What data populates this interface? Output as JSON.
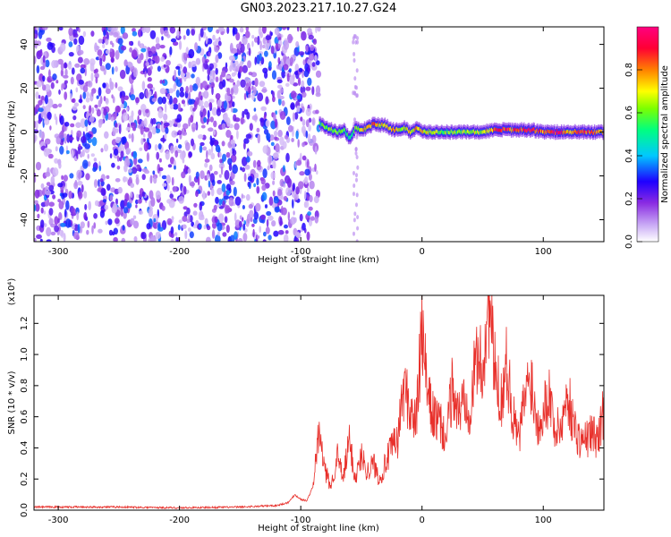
{
  "title": "GN03.2023.217.10.27.G24",
  "chart_data": [
    {
      "type": "heatmap",
      "xlabel": "Height of straight line (km)",
      "ylabel": "Frequency (Hz)",
      "xlim": [
        -320,
        150
      ],
      "ylim": [
        -50,
        48
      ],
      "x_ticks": [
        -300,
        -200,
        -100,
        0,
        100
      ],
      "y_ticks": [
        -40,
        -20,
        0,
        20,
        40
      ],
      "colorbar": {
        "label": "Normalized spectral amplitude",
        "range": [
          0,
          1
        ],
        "ticks": [
          0.0,
          0.2,
          0.4,
          0.6,
          0.8
        ],
        "colors": [
          "#ffffff",
          "#c8a8f5",
          "#8a2be2",
          "#1e00ff",
          "#00c8ff",
          "#00ff80",
          "#7cff00",
          "#ffff00",
          "#ff8000",
          "#ff0033",
          "#ff0080"
        ]
      },
      "noise_region_x": [
        -320,
        -85
      ],
      "signal_track": {
        "x": [
          -85,
          -80,
          -75,
          -70,
          -65,
          -60,
          -55,
          -50,
          -45,
          -40,
          -35,
          -30,
          -25,
          -20,
          -15,
          -10,
          -5,
          0,
          10,
          20,
          30,
          40,
          50,
          60,
          70,
          80,
          90,
          100,
          110,
          120,
          130,
          140,
          150
        ],
        "frequency": [
          4,
          2,
          1,
          0,
          1,
          -3,
          2,
          1,
          2,
          4,
          3,
          3,
          1,
          1,
          2,
          0,
          2,
          0,
          0,
          0,
          0,
          0,
          0,
          1,
          1,
          1,
          1,
          0,
          0,
          0,
          0,
          0,
          0
        ],
        "amplitude": [
          0.55,
          0.6,
          0.65,
          0.6,
          0.55,
          0.5,
          0.6,
          0.7,
          0.75,
          0.8,
          0.7,
          0.75,
          0.8,
          0.7,
          0.65,
          0.7,
          0.75,
          0.7,
          0.65,
          0.6,
          0.6,
          0.65,
          0.65,
          0.85,
          0.9,
          0.85,
          0.9,
          0.8,
          0.95,
          0.75,
          0.85,
          0.9,
          0.7
        ]
      }
    },
    {
      "type": "line",
      "xlabel": "Height of straight line (km)",
      "ylabel": "SNR (10 * v/v)",
      "y_multiplier": "(x10⁴)",
      "xlim": [
        -320,
        150
      ],
      "ylim": [
        0,
        1.38
      ],
      "x_ticks": [
        -300,
        -200,
        -100,
        0,
        100
      ],
      "y_ticks": [
        0.0,
        0.2,
        0.4,
        0.6,
        0.8,
        1.0,
        1.2
      ],
      "color": "#e8302b",
      "series": [
        {
          "x": [
            -320,
            -300,
            -250,
            -200,
            -150,
            -120,
            -110,
            -105,
            -100,
            -95,
            -90,
            -85,
            -80,
            -75,
            -70,
            -65,
            -60,
            -55,
            -50,
            -45,
            -40,
            -35,
            -30,
            -25,
            -20,
            -15,
            -10,
            -5,
            0,
            5,
            10,
            15,
            20,
            25,
            30,
            35,
            40,
            45,
            50,
            55,
            60,
            65,
            70,
            75,
            80,
            85,
            90,
            95,
            100,
            105,
            110,
            115,
            120,
            125,
            130,
            135,
            140,
            145,
            150
          ],
          "values": [
            0.02,
            0.02,
            0.02,
            0.015,
            0.02,
            0.03,
            0.05,
            0.1,
            0.07,
            0.06,
            0.15,
            0.5,
            0.25,
            0.15,
            0.35,
            0.2,
            0.45,
            0.2,
            0.35,
            0.25,
            0.3,
            0.2,
            0.3,
            0.4,
            0.45,
            0.8,
            0.65,
            0.55,
            1.15,
            0.7,
            0.6,
            0.55,
            0.45,
            0.8,
            0.6,
            0.75,
            0.65,
            1.0,
            0.9,
            1.35,
            0.9,
            0.7,
            0.95,
            0.6,
            0.45,
            0.75,
            0.85,
            0.55,
            0.65,
            0.75,
            0.5,
            0.55,
            0.75,
            0.55,
            0.45,
            0.45,
            0.5,
            0.45,
            0.65
          ]
        }
      ]
    }
  ]
}
